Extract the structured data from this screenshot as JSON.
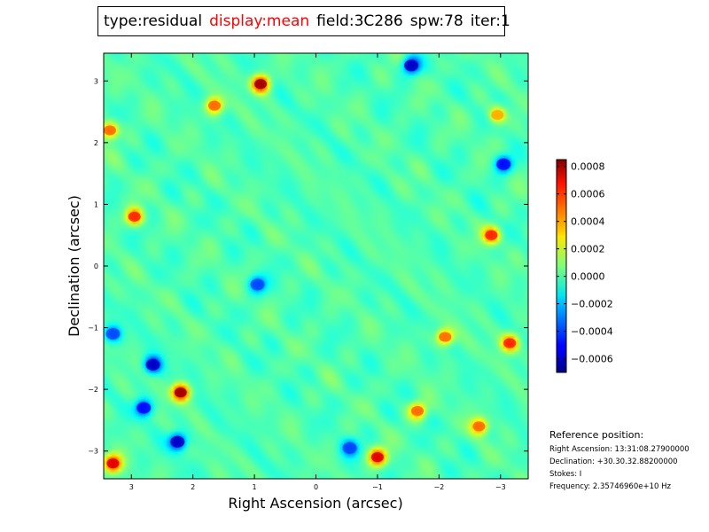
{
  "header": {
    "type": "type:residual",
    "display": "display:mean",
    "field": "field:3C286",
    "spw": "spw:78",
    "iter": "iter:1",
    "highlight_color": "#ff0000"
  },
  "chart_data": {
    "type": "heatmap",
    "title": "type:residual display:mean field:3C286 spw:78 iter:1",
    "xlabel": "Right Ascension (arcsec)",
    "ylabel": "Declination (arcsec)",
    "xlim": [
      3.45,
      -3.45
    ],
    "ylim": [
      -3.45,
      3.45
    ],
    "x_ticks": [
      3,
      2,
      1,
      0,
      -1,
      -2,
      -3
    ],
    "y_ticks": [
      3,
      2,
      1,
      0,
      -1,
      -2,
      -3
    ],
    "x_tick_labels": [
      "3",
      "2",
      "1",
      "0",
      "−1",
      "−2",
      "−3"
    ],
    "y_tick_labels": [
      "3",
      "2",
      "1",
      "0",
      "−1",
      "−2",
      "−3"
    ],
    "colormap": "jet",
    "colorbar": {
      "range": [
        -0.0007,
        0.00085
      ],
      "ticks": [
        0.0008,
        0.0006,
        0.0004,
        0.0002,
        0.0,
        -0.0002,
        -0.0004,
        -0.0006
      ],
      "tick_labels": [
        "0.0008",
        "0.0006",
        "0.0004",
        "0.0002",
        "0.0000",
        "−0.0002",
        "−0.0004",
        "−0.0006"
      ]
    },
    "description": "Residual image noise with diagonal striping, values mostly between -0.0002 and 0.0002 with scattered peaks up to ~0.0008 and troughs near -0.0006",
    "hotspots": [
      {
        "x": 0.9,
        "y": 2.95,
        "value": 0.0008
      },
      {
        "x": 2.2,
        "y": -2.05,
        "value": 0.0008
      },
      {
        "x": 3.3,
        "y": -3.2,
        "value": 0.0007
      },
      {
        "x": -1.0,
        "y": -3.1,
        "value": 0.0007
      },
      {
        "x": -2.85,
        "y": 0.5,
        "value": 0.0006
      },
      {
        "x": -3.15,
        "y": -1.25,
        "value": 0.0006
      },
      {
        "x": 2.95,
        "y": 0.8,
        "value": 0.0006
      },
      {
        "x": 1.65,
        "y": 2.6,
        "value": 0.0005
      },
      {
        "x": -1.65,
        "y": -2.35,
        "value": 0.0005
      },
      {
        "x": -2.65,
        "y": -2.6,
        "value": 0.0005
      },
      {
        "x": -2.1,
        "y": -1.15,
        "value": 0.0005
      },
      {
        "x": 3.35,
        "y": 2.2,
        "value": 0.0005
      },
      {
        "x": -2.95,
        "y": 2.45,
        "value": 0.0004
      }
    ],
    "coldspots": [
      {
        "x": -1.55,
        "y": 3.25,
        "value": -0.0006
      },
      {
        "x": 2.65,
        "y": -1.6,
        "value": -0.0006
      },
      {
        "x": 2.25,
        "y": -2.85,
        "value": -0.0006
      },
      {
        "x": -3.05,
        "y": 1.65,
        "value": -0.0005
      },
      {
        "x": 2.8,
        "y": -2.3,
        "value": -0.0005
      },
      {
        "x": 3.3,
        "y": -1.1,
        "value": -0.0004
      },
      {
        "x": 0.95,
        "y": -0.3,
        "value": -0.0004
      },
      {
        "x": -0.55,
        "y": -2.95,
        "value": -0.0004
      }
    ]
  },
  "reference": {
    "title": "Reference position:",
    "ra": "Right Ascension: 13:31:08.27900000",
    "dec": "Declination: +30.30.32.88200000",
    "stokes": "Stokes: I",
    "frequency": "Frequency: 2.35746960e+10 Hz"
  }
}
